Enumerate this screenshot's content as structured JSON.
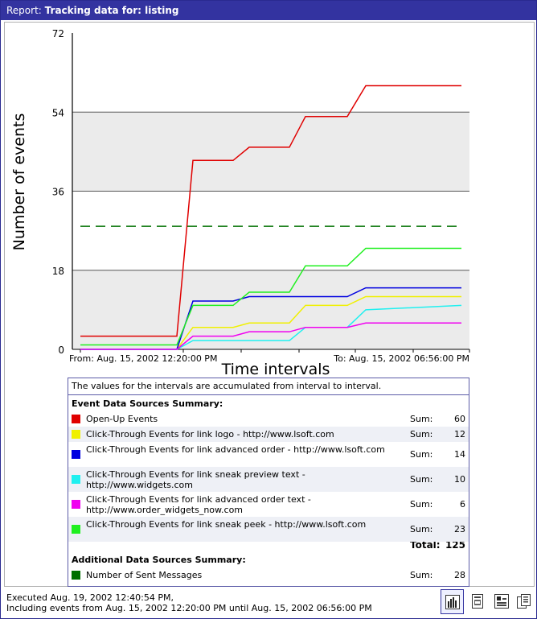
{
  "window": {
    "title_prefix": "Report:",
    "title": "Tracking data for: listing"
  },
  "chart_data": {
    "type": "line",
    "ylabel": "Number of events",
    "xlabel": "Time intervals",
    "ylim": [
      0,
      72
    ],
    "yticks": [
      "72",
      "54",
      "36",
      "18",
      "0"
    ],
    "x_from_label": "From: Aug. 15, 2002 12:20:00 PM",
    "x_to_label": "To: Aug. 15, 2002 06:56:00 PM",
    "grid": true,
    "x": [
      0,
      1,
      2,
      3,
      4,
      5,
      6,
      7
    ],
    "series": [
      {
        "name": "Open-Up Events",
        "color": "#e00000",
        "values": [
          3,
          3,
          43,
          46,
          46,
          53,
          60,
          60
        ]
      },
      {
        "name": "Click-Through Events for link logo - http://www.lsoft.com",
        "color": "#f0f000",
        "values": [
          0,
          0,
          5,
          6,
          6,
          10,
          12,
          12
        ]
      },
      {
        "name": "Click-Through Events for link advanced order - http://www.lsoft.com",
        "color": "#0000e0",
        "values": [
          0,
          0,
          11,
          12,
          12,
          12,
          14,
          14
        ]
      },
      {
        "name": "Click-Through Events for link sneak preview text - http://www.widgets.com",
        "color": "#20f0f0",
        "values": [
          0,
          0,
          2,
          2,
          2,
          5,
          9,
          10
        ]
      },
      {
        "name": "Click-Through Events for link advanced order text - http://www.order_widgets_now.com",
        "color": "#f000f0",
        "values": [
          0,
          0,
          3,
          4,
          4,
          5,
          6,
          6
        ]
      },
      {
        "name": "Click-Through Events for link sneak peek - http://www.lsoft.com",
        "color": "#20f020",
        "values": [
          1,
          1,
          10,
          13,
          13,
          19,
          23,
          23
        ]
      },
      {
        "name": "Number of Sent Messages",
        "color": "#007000",
        "dashed": true,
        "values": [
          28,
          28,
          28,
          28,
          28,
          28,
          28,
          28
        ]
      }
    ]
  },
  "summary": {
    "note": "The values for the intervals are accumulated from interval to interval.",
    "event_header": "Event Data Sources Summary:",
    "sum_label": "Sum:",
    "events": [
      {
        "label": "Open-Up Events",
        "color": "#e00000",
        "sum": "60"
      },
      {
        "label": "Click-Through Events for link logo - http://www.lsoft.com",
        "color": "#f0f000",
        "sum": "12"
      },
      {
        "label": "Click-Through Events for link advanced order - http://www.lsoft.com",
        "color": "#0000e0",
        "sum": "14"
      },
      {
        "label": "Click-Through Events for link sneak preview text - http://www.widgets.com",
        "color": "#20f0f0",
        "sum": "10"
      },
      {
        "label": "Click-Through Events for link advanced order text - http://www.order_widgets_now.com",
        "color": "#f000f0",
        "sum": "6"
      },
      {
        "label": "Click-Through Events for link sneak peek - http://www.lsoft.com",
        "color": "#20f020",
        "sum": "23"
      }
    ],
    "total_label": "Total:",
    "total_value": "125",
    "additional_header": "Additional Data Sources Summary:",
    "additional": [
      {
        "label": "Number of Sent Messages",
        "color": "#007000",
        "sum": "28"
      }
    ]
  },
  "footer": {
    "line1": "Executed Aug. 19, 2002 12:40:54 PM,",
    "line2": "Including events from Aug. 15, 2002 12:20:00 PM until Aug. 15, 2002 06:56:00 PM"
  },
  "toolbar": {
    "icons": [
      "bar-chart-icon",
      "report-icon",
      "data-table-icon",
      "copy-icon"
    ]
  }
}
